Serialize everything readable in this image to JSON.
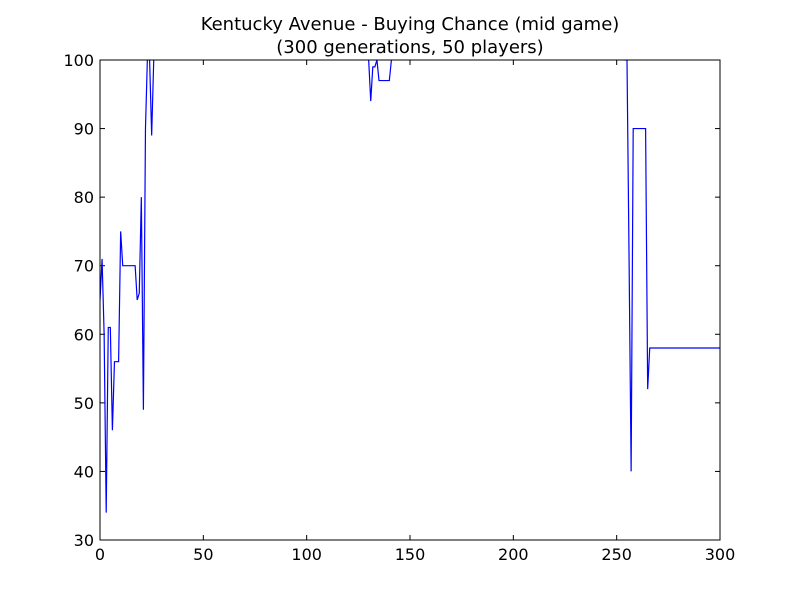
{
  "chart_data": {
    "type": "line",
    "title_line1": "Kentucky Avenue - Buying Chance (mid game)",
    "title_line2": "(300 generations, 50 players)",
    "xlabel": "",
    "ylabel": "",
    "xlim": [
      0,
      300
    ],
    "ylim": [
      30,
      100
    ],
    "xticks": [
      0,
      50,
      100,
      150,
      200,
      250,
      300
    ],
    "yticks": [
      30,
      40,
      50,
      60,
      70,
      80,
      90,
      100
    ],
    "grid": false,
    "series": [
      {
        "color": "#0000ff",
        "points": [
          [
            0,
            65
          ],
          [
            1,
            71
          ],
          [
            2,
            60
          ],
          [
            3,
            34
          ],
          [
            4,
            61
          ],
          [
            5,
            61
          ],
          [
            6,
            46
          ],
          [
            7,
            56
          ],
          [
            8,
            56
          ],
          [
            9,
            56
          ],
          [
            10,
            75
          ],
          [
            11,
            70
          ],
          [
            12,
            70
          ],
          [
            13,
            70
          ],
          [
            14,
            70
          ],
          [
            15,
            70
          ],
          [
            16,
            70
          ],
          [
            17,
            70
          ],
          [
            18,
            65
          ],
          [
            19,
            66
          ],
          [
            20,
            80
          ],
          [
            21,
            49
          ],
          [
            22,
            90
          ],
          [
            23,
            101
          ],
          [
            24,
            100
          ],
          [
            25,
            89
          ],
          [
            26,
            100
          ],
          [
            27,
            101
          ],
          [
            28,
            101
          ],
          [
            129,
            101
          ],
          [
            130,
            100
          ],
          [
            131,
            94
          ],
          [
            132,
            99
          ],
          [
            133,
            99
          ],
          [
            134,
            100
          ],
          [
            135,
            97
          ],
          [
            136,
            97
          ],
          [
            137,
            97
          ],
          [
            138,
            97
          ],
          [
            139,
            97
          ],
          [
            140,
            97
          ],
          [
            141,
            100
          ],
          [
            142,
            101
          ],
          [
            253,
            101
          ],
          [
            254,
            100
          ],
          [
            255,
            100
          ],
          [
            256,
            71
          ],
          [
            257,
            40
          ],
          [
            258,
            90
          ],
          [
            259,
            90
          ],
          [
            260,
            90
          ],
          [
            261,
            90
          ],
          [
            262,
            90
          ],
          [
            263,
            90
          ],
          [
            264,
            90
          ],
          [
            265,
            52
          ],
          [
            266,
            58
          ],
          [
            267,
            58
          ],
          [
            268,
            58
          ],
          [
            270,
            58
          ],
          [
            280,
            58
          ],
          [
            290,
            58
          ],
          [
            300,
            58
          ]
        ]
      }
    ]
  }
}
